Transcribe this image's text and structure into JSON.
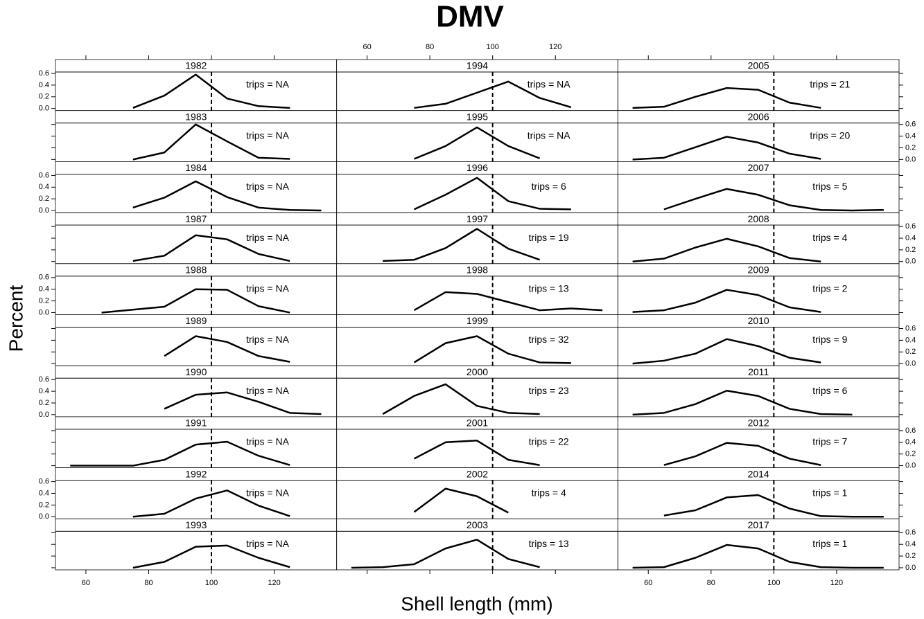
{
  "chart_data": {
    "type": "line",
    "title": "DMV",
    "x_label": "Shell length (mm)",
    "y_label": "Percent",
    "xlim": [
      50.3,
      139.9
    ],
    "xticks": [
      60,
      80,
      100,
      120
    ],
    "ylim": [
      -0.036,
      0.624
    ],
    "yticks": [
      {
        "value": 0,
        "label": "0.0"
      },
      0.2,
      0.4,
      0.6
    ],
    "reference_x": 100,
    "color": "#000000",
    "layout": [
      3,
      10
    ],
    "panels": [
      {
        "name": "1982",
        "annotation": "trips = NA",
        "x": [
          75,
          85,
          95,
          105,
          115,
          125
        ],
        "values": [
          0.01,
          0.22,
          0.58,
          0.17,
          0.04,
          0.01
        ]
      },
      {
        "name": "1983",
        "annotation": "trips = NA",
        "x": [
          75,
          85,
          95,
          105,
          115,
          125
        ],
        "values": [
          0.0,
          0.12,
          0.6,
          0.31,
          0.03,
          0.01
        ]
      },
      {
        "name": "1984",
        "annotation": "trips = NA",
        "x": [
          75,
          85,
          95,
          105,
          115,
          125,
          135
        ],
        "values": [
          0.05,
          0.22,
          0.5,
          0.23,
          0.05,
          0.01,
          0.0
        ]
      },
      {
        "name": "1987",
        "annotation": "trips = NA",
        "x": [
          75,
          85,
          95,
          105,
          115,
          125
        ],
        "values": [
          0.01,
          0.1,
          0.45,
          0.38,
          0.13,
          0.01
        ]
      },
      {
        "name": "1988",
        "annotation": "trips = NA",
        "x": [
          65,
          75,
          85,
          95,
          105,
          115,
          125
        ],
        "values": [
          0.0,
          0.05,
          0.1,
          0.4,
          0.39,
          0.11,
          0.0
        ]
      },
      {
        "name": "1989",
        "annotation": "trips = NA",
        "x": [
          85,
          95,
          105,
          115,
          125
        ],
        "values": [
          0.13,
          0.47,
          0.37,
          0.13,
          0.03
        ]
      },
      {
        "name": "1990",
        "annotation": "trips = NA",
        "x": [
          85,
          95,
          105,
          115,
          125,
          135
        ],
        "values": [
          0.1,
          0.34,
          0.38,
          0.22,
          0.03,
          0.01
        ]
      },
      {
        "name": "1991",
        "annotation": "trips = NA",
        "x": [
          55,
          65,
          75,
          85,
          95,
          105,
          115,
          125
        ],
        "values": [
          0.0,
          0.0,
          0.0,
          0.1,
          0.36,
          0.41,
          0.17,
          0.01
        ]
      },
      {
        "name": "1992",
        "annotation": "trips = NA",
        "x": [
          75,
          85,
          95,
          105,
          115,
          125
        ],
        "values": [
          0.0,
          0.05,
          0.31,
          0.45,
          0.19,
          0.01
        ]
      },
      {
        "name": "1993",
        "annotation": "trips = NA",
        "x": [
          75,
          85,
          95,
          105,
          115,
          125
        ],
        "values": [
          0.0,
          0.1,
          0.36,
          0.38,
          0.17,
          0.01
        ]
      },
      {
        "name": "1994",
        "annotation": "trips = NA",
        "x": [
          75,
          85,
          95,
          105,
          115,
          125
        ],
        "values": [
          0.01,
          0.08,
          0.27,
          0.46,
          0.18,
          0.02
        ]
      },
      {
        "name": "1995",
        "annotation": "trips = NA",
        "x": [
          75,
          85,
          95,
          105,
          115
        ],
        "values": [
          0.01,
          0.23,
          0.55,
          0.23,
          0.02
        ]
      },
      {
        "name": "1996",
        "annotation": "trips = 6",
        "x": [
          75,
          85,
          95,
          105,
          115,
          125
        ],
        "values": [
          0.02,
          0.27,
          0.56,
          0.16,
          0.03,
          0.02
        ]
      },
      {
        "name": "1997",
        "annotation": "trips = 19",
        "x": [
          65,
          75,
          85,
          95,
          105,
          115
        ],
        "values": [
          0.01,
          0.03,
          0.23,
          0.56,
          0.22,
          0.03
        ]
      },
      {
        "name": "1998",
        "annotation": "trips = 13",
        "x": [
          75,
          85,
          95,
          105,
          115,
          125,
          135
        ],
        "values": [
          0.04,
          0.35,
          0.32,
          0.18,
          0.04,
          0.07,
          0.04
        ]
      },
      {
        "name": "1999",
        "annotation": "trips = 32",
        "x": [
          75,
          85,
          95,
          105,
          115,
          125
        ],
        "values": [
          0.02,
          0.35,
          0.47,
          0.17,
          0.02,
          0.01
        ]
      },
      {
        "name": "2000",
        "annotation": "trips = 23",
        "x": [
          65,
          75,
          85,
          95,
          105,
          115
        ],
        "values": [
          0.01,
          0.32,
          0.52,
          0.15,
          0.03,
          0.01
        ]
      },
      {
        "name": "2001",
        "annotation": "trips = 22",
        "x": [
          75,
          85,
          95,
          105,
          115
        ],
        "values": [
          0.12,
          0.4,
          0.43,
          0.1,
          0.01
        ]
      },
      {
        "name": "2002",
        "annotation": "trips = 4",
        "x": [
          75,
          85,
          95,
          105
        ],
        "values": [
          0.08,
          0.48,
          0.35,
          0.07
        ]
      },
      {
        "name": "2003",
        "annotation": "trips = 13",
        "x": [
          55,
          65,
          75,
          85,
          95,
          105,
          115
        ],
        "values": [
          0.0,
          0.01,
          0.06,
          0.33,
          0.48,
          0.15,
          0.01
        ]
      },
      {
        "name": "2005",
        "annotation": "trips = 21",
        "x": [
          55,
          65,
          75,
          85,
          95,
          105,
          115
        ],
        "values": [
          0.01,
          0.03,
          0.2,
          0.35,
          0.32,
          0.1,
          0.01
        ]
      },
      {
        "name": "2006",
        "annotation": "trips = 20",
        "x": [
          55,
          65,
          75,
          85,
          95,
          105,
          115
        ],
        "values": [
          0.0,
          0.03,
          0.21,
          0.39,
          0.29,
          0.1,
          0.01
        ]
      },
      {
        "name": "2007",
        "annotation": "trips = 5",
        "x": [
          65,
          75,
          85,
          95,
          105,
          115,
          125,
          135
        ],
        "values": [
          0.02,
          0.2,
          0.37,
          0.27,
          0.09,
          0.01,
          0.0,
          0.01
        ]
      },
      {
        "name": "2008",
        "annotation": "trips = 4",
        "x": [
          55,
          65,
          75,
          85,
          95,
          105,
          115
        ],
        "values": [
          0.0,
          0.05,
          0.24,
          0.39,
          0.26,
          0.06,
          0.0
        ]
      },
      {
        "name": "2009",
        "annotation": "trips = 2",
        "x": [
          55,
          65,
          75,
          85,
          95,
          105,
          115
        ],
        "values": [
          0.01,
          0.04,
          0.17,
          0.39,
          0.3,
          0.09,
          0.01
        ]
      },
      {
        "name": "2010",
        "annotation": "trips = 9",
        "x": [
          55,
          65,
          75,
          85,
          95,
          105,
          115
        ],
        "values": [
          0.0,
          0.05,
          0.17,
          0.42,
          0.3,
          0.1,
          0.02
        ]
      },
      {
        "name": "2011",
        "annotation": "trips = 6",
        "x": [
          55,
          65,
          75,
          85,
          95,
          105,
          115,
          125
        ],
        "values": [
          0.0,
          0.03,
          0.18,
          0.41,
          0.32,
          0.1,
          0.01,
          0.0
        ]
      },
      {
        "name": "2012",
        "annotation": "trips = 7",
        "x": [
          65,
          75,
          85,
          95,
          105,
          115
        ],
        "values": [
          0.01,
          0.16,
          0.39,
          0.34,
          0.12,
          0.01
        ]
      },
      {
        "name": "2014",
        "annotation": "trips = 1",
        "x": [
          65,
          75,
          85,
          95,
          105,
          115,
          125,
          135
        ],
        "values": [
          0.02,
          0.11,
          0.33,
          0.37,
          0.14,
          0.01,
          0.0,
          0.0
        ]
      },
      {
        "name": "2017",
        "annotation": "trips = 1",
        "x": [
          55,
          65,
          75,
          85,
          95,
          105,
          115,
          125,
          135
        ],
        "values": [
          0.0,
          0.01,
          0.17,
          0.39,
          0.33,
          0.1,
          0.01,
          0.0,
          0.0
        ]
      }
    ]
  }
}
